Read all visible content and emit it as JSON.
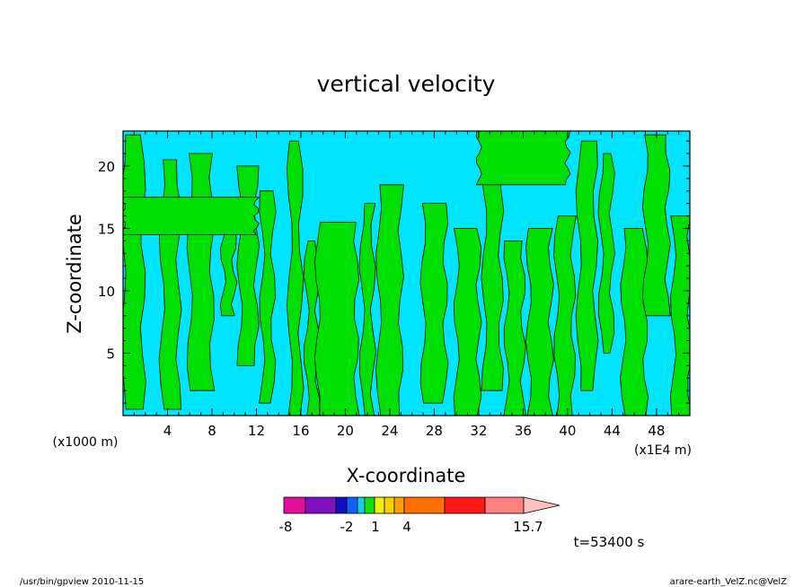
{
  "chart_data": {
    "type": "heatmap",
    "title": "vertical velocity",
    "xlabel": "X-coordinate",
    "ylabel": "Z-coordinate",
    "x_scale_note": "(x1000 m)",
    "x_scale_note_right": "(x1E4 m)",
    "xlim": [
      0,
      51
    ],
    "ylim": [
      0,
      22.8
    ],
    "xticks": [
      4,
      8,
      12,
      16,
      20,
      24,
      28,
      32,
      36,
      40,
      44,
      48
    ],
    "xtick_labels": [
      "4",
      "8",
      "12",
      "16",
      "20",
      "24",
      "28",
      "32",
      "36",
      "40",
      "44",
      "48"
    ],
    "yticks": [
      5,
      10,
      15,
      20
    ],
    "ytick_labels": [
      "5",
      "10",
      "15",
      "20"
    ],
    "grid": false,
    "field_colors": {
      "negative": "#00e5ff",
      "positive": "#00e000"
    },
    "updraft_regions": [
      {
        "x": [
          0.0,
          1.8
        ],
        "z": [
          0.5,
          22.5
        ]
      },
      {
        "x": [
          3.5,
          5.0
        ],
        "z": [
          0.5,
          20.5
        ]
      },
      {
        "x": [
          6.0,
          8.0
        ],
        "z": [
          2.0,
          21.0
        ]
      },
      {
        "x": [
          9.0,
          10.0
        ],
        "z": [
          8.0,
          17.0
        ]
      },
      {
        "x": [
          10.5,
          12.0
        ],
        "z": [
          4.0,
          20.0
        ]
      },
      {
        "x": [
          12.5,
          13.5
        ],
        "z": [
          1.0,
          18.0
        ]
      },
      {
        "x": [
          15.0,
          16.0
        ],
        "z": [
          0.0,
          22.0
        ]
      },
      {
        "x": [
          16.5,
          17.5
        ],
        "z": [
          0.0,
          14.0
        ]
      },
      {
        "x": [
          17.5,
          21.0
        ],
        "z": [
          0.0,
          15.5
        ]
      },
      {
        "x": [
          21.5,
          22.5
        ],
        "z": [
          0.0,
          17.0
        ]
      },
      {
        "x": [
          23.0,
          25.0
        ],
        "z": [
          0.0,
          18.5
        ]
      },
      {
        "x": [
          27.0,
          29.0
        ],
        "z": [
          1.0,
          17.0
        ]
      },
      {
        "x": [
          30.0,
          32.0
        ],
        "z": [
          0.0,
          15.0
        ]
      },
      {
        "x": [
          32.5,
          34.0
        ],
        "z": [
          2.0,
          20.0
        ]
      },
      {
        "x": [
          34.5,
          36.0
        ],
        "z": [
          0.0,
          14.0
        ]
      },
      {
        "x": [
          36.5,
          38.5
        ],
        "z": [
          0.0,
          15.0
        ]
      },
      {
        "x": [
          39.0,
          40.5
        ],
        "z": [
          0.0,
          16.0
        ]
      },
      {
        "x": [
          41.0,
          42.5
        ],
        "z": [
          2.0,
          22.0
        ]
      },
      {
        "x": [
          43.0,
          44.0
        ],
        "z": [
          5.0,
          21.0
        ]
      },
      {
        "x": [
          45.0,
          47.0
        ],
        "z": [
          0.0,
          15.0
        ]
      },
      {
        "x": [
          47.0,
          49.0
        ],
        "z": [
          8.0,
          22.5
        ]
      },
      {
        "x": [
          49.5,
          51.0
        ],
        "z": [
          0.0,
          16.0
        ]
      },
      {
        "x": [
          0.0,
          12.0
        ],
        "z": [
          14.5,
          17.5
        ]
      },
      {
        "x": [
          32.0,
          40.0
        ],
        "z": [
          18.5,
          22.8
        ]
      }
    ],
    "colorbar": {
      "colors": [
        "#e0109a",
        "#8010c0",
        "#1010c0",
        "#1060ff",
        "#10d0e8",
        "#10e010",
        "#f0f010",
        "#ffd000",
        "#ffa000",
        "#ff7000",
        "#ff1818",
        "#ff8080",
        "#ffc0c0"
      ],
      "tick_labels": [
        "-8",
        "-2",
        "1",
        "4",
        "15.7"
      ]
    },
    "time_label": "t=53400 s"
  },
  "footer": {
    "left": "/usr/bin/gpview  2010-11-15",
    "right": "arare-earth_VelZ.nc@VelZ"
  }
}
